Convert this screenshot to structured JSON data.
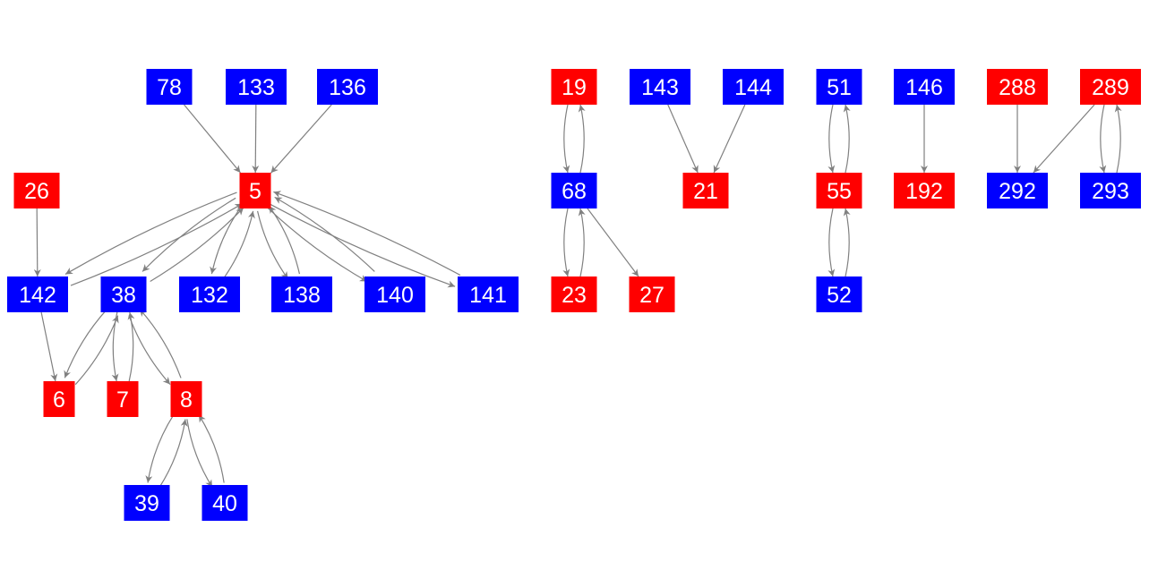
{
  "colors": {
    "red": "#ff0000",
    "blue": "#0000ff",
    "edge": "#808080",
    "label": "#ffffff"
  },
  "nodes": [
    {
      "id": "78",
      "color": "blue"
    },
    {
      "id": "133",
      "color": "blue"
    },
    {
      "id": "136",
      "color": "blue"
    },
    {
      "id": "26",
      "color": "red"
    },
    {
      "id": "5",
      "color": "red"
    },
    {
      "id": "142",
      "color": "blue"
    },
    {
      "id": "38",
      "color": "blue"
    },
    {
      "id": "132",
      "color": "blue"
    },
    {
      "id": "138",
      "color": "blue"
    },
    {
      "id": "140",
      "color": "blue"
    },
    {
      "id": "141",
      "color": "blue"
    },
    {
      "id": "6",
      "color": "red"
    },
    {
      "id": "7",
      "color": "red"
    },
    {
      "id": "8",
      "color": "red"
    },
    {
      "id": "39",
      "color": "blue"
    },
    {
      "id": "40",
      "color": "blue"
    },
    {
      "id": "19",
      "color": "red"
    },
    {
      "id": "68",
      "color": "blue"
    },
    {
      "id": "23",
      "color": "red"
    },
    {
      "id": "27",
      "color": "red"
    },
    {
      "id": "143",
      "color": "blue"
    },
    {
      "id": "144",
      "color": "blue"
    },
    {
      "id": "21",
      "color": "red"
    },
    {
      "id": "51",
      "color": "blue"
    },
    {
      "id": "55",
      "color": "red"
    },
    {
      "id": "52",
      "color": "blue"
    },
    {
      "id": "146",
      "color": "blue"
    },
    {
      "id": "192",
      "color": "red"
    },
    {
      "id": "288",
      "color": "red"
    },
    {
      "id": "289",
      "color": "red"
    },
    {
      "id": "292",
      "color": "blue"
    },
    {
      "id": "293",
      "color": "blue"
    }
  ],
  "edges": [
    [
      "78",
      "5"
    ],
    [
      "133",
      "5"
    ],
    [
      "136",
      "5"
    ],
    [
      "26",
      "142"
    ],
    [
      "5",
      "142"
    ],
    [
      "142",
      "5"
    ],
    [
      "5",
      "38"
    ],
    [
      "38",
      "5"
    ],
    [
      "5",
      "132"
    ],
    [
      "132",
      "5"
    ],
    [
      "5",
      "138"
    ],
    [
      "138",
      "5"
    ],
    [
      "5",
      "140"
    ],
    [
      "140",
      "5"
    ],
    [
      "5",
      "141"
    ],
    [
      "141",
      "5"
    ],
    [
      "142",
      "6"
    ],
    [
      "38",
      "6"
    ],
    [
      "6",
      "38"
    ],
    [
      "38",
      "7"
    ],
    [
      "7",
      "38"
    ],
    [
      "38",
      "8"
    ],
    [
      "8",
      "38"
    ],
    [
      "8",
      "39"
    ],
    [
      "39",
      "8"
    ],
    [
      "8",
      "40"
    ],
    [
      "40",
      "8"
    ],
    [
      "19",
      "68"
    ],
    [
      "68",
      "19"
    ],
    [
      "68",
      "23"
    ],
    [
      "23",
      "68"
    ],
    [
      "68",
      "27"
    ],
    [
      "143",
      "21"
    ],
    [
      "144",
      "21"
    ],
    [
      "51",
      "55"
    ],
    [
      "55",
      "51"
    ],
    [
      "55",
      "52"
    ],
    [
      "52",
      "55"
    ],
    [
      "146",
      "192"
    ],
    [
      "288",
      "292"
    ],
    [
      "289",
      "292"
    ],
    [
      "289",
      "293"
    ],
    [
      "293",
      "289"
    ]
  ]
}
